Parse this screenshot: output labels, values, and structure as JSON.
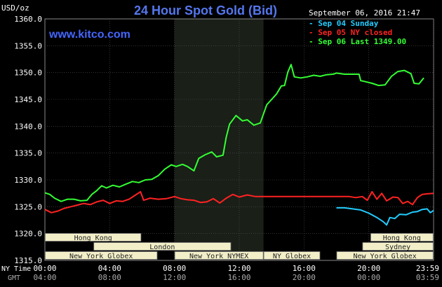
{
  "header": {
    "unit": "USD/oz",
    "title": "24 Hour Spot Gold (Bid)",
    "brand": "www.kitco.com",
    "datetime": "September 06, 2016 21:47"
  },
  "colors": {
    "background": "#000000",
    "title": "#5577ee",
    "brand": "#4466ff",
    "axis_text": "#ffffff",
    "session_bar": "#f2efc8",
    "highlight": "#1a1f18",
    "grid": "#555555"
  },
  "legend": [
    {
      "label": "Sep 04 Sunday",
      "color": "#22ccff"
    },
    {
      "label": "Sep 05 NY closed",
      "color": "#ff2222"
    },
    {
      "label": "Sep 06 Last 1349.00",
      "color": "#33ff33"
    }
  ],
  "time_axis": {
    "ny_label": "NY Time",
    "gmt_label": "GMT",
    "ny_ticks": [
      "00:00",
      "04:00",
      "08:00",
      "12:00",
      "16:00",
      "20:00",
      "23:59"
    ],
    "gmt_ticks": [
      "04:00",
      "08:00",
      "12:00",
      "16:00",
      "20:00",
      "00:00",
      "03:59"
    ]
  },
  "sessions": [
    {
      "label": "Hong Kong",
      "start": 0,
      "end": 5.95
    },
    {
      "label": "Hong Kong",
      "start": 20.1,
      "end": 23.99
    },
    {
      "label": "London",
      "start": 3.0,
      "end": 11.5
    },
    {
      "label": "Sydney",
      "start": 19.6,
      "end": 23.99
    },
    {
      "label": "New York Globex",
      "start": 0,
      "end": 6.95
    },
    {
      "label": "New York Globex",
      "start": 18.0,
      "end": 23.99
    },
    {
      "label": "New York NYMEX",
      "start": 8.0,
      "end": 13.5
    },
    {
      "label": "NY Globex",
      "start": 13.5,
      "end": 17.0
    }
  ],
  "chart_data": {
    "type": "line",
    "xlabel": "",
    "ylabel": "USD/oz",
    "xlim": [
      0,
      24
    ],
    "ylim": [
      1315.0,
      1360.0
    ],
    "yticks": [
      1315.0,
      1320.0,
      1325.0,
      1330.0,
      1335.0,
      1340.0,
      1345.0,
      1350.0,
      1355.0,
      1360.0
    ],
    "xticks": [
      0,
      4,
      8,
      12,
      16,
      20,
      23.99
    ],
    "grid": true,
    "highlight_range": [
      8.0,
      13.5
    ],
    "legend_position": "top-right",
    "series": [
      {
        "name": "Sep 04 Sunday",
        "color": "#22ccff",
        "points": [
          [
            18.0,
            1324.8
          ],
          [
            18.5,
            1324.8
          ],
          [
            19.0,
            1324.6
          ],
          [
            19.5,
            1324.4
          ],
          [
            20.0,
            1323.8
          ],
          [
            20.5,
            1323.0
          ],
          [
            20.9,
            1322.2
          ],
          [
            21.1,
            1321.6
          ],
          [
            21.3,
            1323.0
          ],
          [
            21.6,
            1322.8
          ],
          [
            21.9,
            1323.6
          ],
          [
            22.3,
            1323.5
          ],
          [
            22.7,
            1324.0
          ],
          [
            23.0,
            1324.1
          ],
          [
            23.3,
            1324.5
          ],
          [
            23.6,
            1324.6
          ],
          [
            23.8,
            1323.9
          ],
          [
            23.99,
            1324.3
          ]
        ]
      },
      {
        "name": "Sep 05 NY closed",
        "color": "#ff2222",
        "points": [
          [
            0.0,
            1324.5
          ],
          [
            0.4,
            1323.9
          ],
          [
            0.8,
            1324.2
          ],
          [
            1.2,
            1324.7
          ],
          [
            1.6,
            1325.0
          ],
          [
            2.0,
            1325.3
          ],
          [
            2.4,
            1325.6
          ],
          [
            2.8,
            1325.4
          ],
          [
            3.2,
            1325.9
          ],
          [
            3.6,
            1326.2
          ],
          [
            4.0,
            1325.6
          ],
          [
            4.4,
            1326.1
          ],
          [
            4.8,
            1326.0
          ],
          [
            5.2,
            1326.4
          ],
          [
            5.6,
            1327.2
          ],
          [
            5.9,
            1327.8
          ],
          [
            6.1,
            1326.2
          ],
          [
            6.5,
            1326.6
          ],
          [
            7.0,
            1326.4
          ],
          [
            7.5,
            1326.5
          ],
          [
            8.0,
            1326.9
          ],
          [
            8.4,
            1326.5
          ],
          [
            8.8,
            1326.3
          ],
          [
            9.2,
            1326.2
          ],
          [
            9.6,
            1325.8
          ],
          [
            10.0,
            1325.9
          ],
          [
            10.4,
            1326.5
          ],
          [
            10.8,
            1325.7
          ],
          [
            11.2,
            1326.6
          ],
          [
            11.6,
            1327.3
          ],
          [
            12.0,
            1326.8
          ],
          [
            12.5,
            1327.2
          ],
          [
            13.0,
            1326.9
          ],
          [
            14.0,
            1326.9
          ],
          [
            15.0,
            1326.9
          ],
          [
            16.0,
            1326.9
          ],
          [
            17.0,
            1326.9
          ],
          [
            18.0,
            1326.9
          ],
          [
            18.8,
            1326.9
          ],
          [
            19.2,
            1326.7
          ],
          [
            19.6,
            1326.9
          ],
          [
            19.9,
            1326.2
          ],
          [
            20.2,
            1327.8
          ],
          [
            20.5,
            1326.4
          ],
          [
            20.8,
            1327.5
          ],
          [
            21.1,
            1326.1
          ],
          [
            21.5,
            1326.8
          ],
          [
            21.8,
            1326.7
          ],
          [
            22.1,
            1325.6
          ],
          [
            22.4,
            1326.0
          ],
          [
            22.7,
            1325.4
          ],
          [
            23.0,
            1326.7
          ],
          [
            23.3,
            1327.3
          ],
          [
            23.6,
            1327.4
          ],
          [
            23.99,
            1327.5
          ]
        ]
      },
      {
        "name": "Sep 06 Last 1349.00",
        "color": "#33ff33",
        "points": [
          [
            0.0,
            1327.6
          ],
          [
            0.3,
            1327.3
          ],
          [
            0.6,
            1326.6
          ],
          [
            1.0,
            1326.0
          ],
          [
            1.4,
            1326.4
          ],
          [
            1.8,
            1326.4
          ],
          [
            2.2,
            1326.1
          ],
          [
            2.6,
            1326.2
          ],
          [
            2.9,
            1327.3
          ],
          [
            3.2,
            1328.0
          ],
          [
            3.5,
            1328.9
          ],
          [
            3.8,
            1328.5
          ],
          [
            4.2,
            1329.0
          ],
          [
            4.6,
            1328.7
          ],
          [
            5.0,
            1329.2
          ],
          [
            5.4,
            1329.7
          ],
          [
            5.8,
            1329.5
          ],
          [
            6.2,
            1330.0
          ],
          [
            6.6,
            1330.1
          ],
          [
            7.0,
            1330.8
          ],
          [
            7.4,
            1332.0
          ],
          [
            7.8,
            1332.8
          ],
          [
            8.1,
            1332.5
          ],
          [
            8.5,
            1332.9
          ],
          [
            8.8,
            1332.5
          ],
          [
            9.2,
            1331.7
          ],
          [
            9.5,
            1334.0
          ],
          [
            9.9,
            1334.7
          ],
          [
            10.3,
            1335.2
          ],
          [
            10.6,
            1334.3
          ],
          [
            11.0,
            1334.6
          ],
          [
            11.2,
            1338.0
          ],
          [
            11.4,
            1340.4
          ],
          [
            11.8,
            1342.0
          ],
          [
            12.2,
            1341.0
          ],
          [
            12.5,
            1341.2
          ],
          [
            12.9,
            1340.2
          ],
          [
            13.3,
            1340.6
          ],
          [
            13.7,
            1344.0
          ],
          [
            14.0,
            1345.0
          ],
          [
            14.3,
            1346.0
          ],
          [
            14.6,
            1347.5
          ],
          [
            14.8,
            1347.6
          ],
          [
            15.0,
            1350.1
          ],
          [
            15.2,
            1351.5
          ],
          [
            15.4,
            1349.2
          ],
          [
            15.8,
            1349.0
          ],
          [
            16.2,
            1349.2
          ],
          [
            16.6,
            1349.5
          ],
          [
            17.0,
            1349.3
          ],
          [
            17.4,
            1349.6
          ],
          [
            17.8,
            1349.7
          ],
          [
            18.0,
            1349.9
          ],
          [
            18.5,
            1349.7
          ],
          [
            19.0,
            1349.7
          ],
          [
            19.4,
            1349.7
          ],
          [
            19.5,
            1348.5
          ],
          [
            19.8,
            1348.3
          ],
          [
            20.2,
            1348.0
          ],
          [
            20.6,
            1347.6
          ],
          [
            21.0,
            1347.7
          ],
          [
            21.4,
            1349.3
          ],
          [
            21.8,
            1350.2
          ],
          [
            22.2,
            1350.4
          ],
          [
            22.6,
            1349.8
          ],
          [
            22.8,
            1348.0
          ],
          [
            23.1,
            1347.9
          ],
          [
            23.4,
            1349.0
          ]
        ]
      }
    ]
  }
}
